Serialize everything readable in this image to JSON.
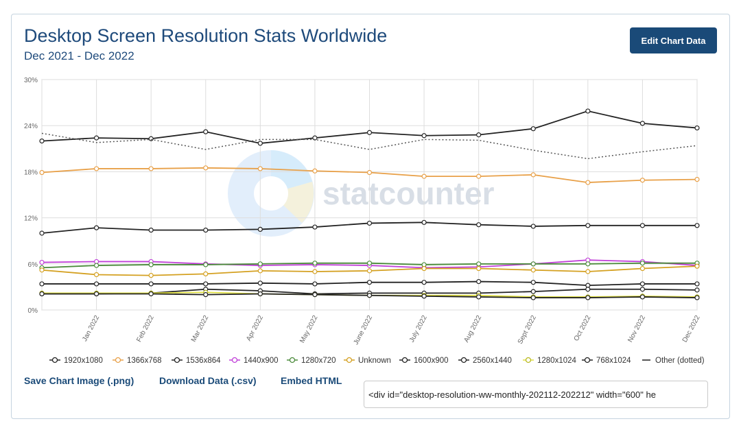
{
  "header": {
    "title": "Desktop Screen Resolution Stats Worldwide",
    "subtitle": "Dec 2021 - Dec 2022",
    "edit_button": "Edit Chart Data"
  },
  "watermark": "statcounter",
  "footer": {
    "save_image": "Save Chart Image (.png)",
    "download_data": "Download Data (.csv)",
    "embed_html": "Embed HTML",
    "embed_code": "<div id=\"desktop-resolution-ww-monthly-202112-202212\" width=\"600\" he"
  },
  "chart_data": {
    "type": "line",
    "x": [
      "",
      "Jan 2022",
      "Feb 2022",
      "Mar 2022",
      "Apr 2022",
      "May 2022",
      "June 2022",
      "July 2022",
      "Aug 2022",
      "Sept 2022",
      "Oct 2022",
      "Nov 2022",
      "Dec 2022"
    ],
    "yticks": [
      "0%",
      "6%",
      "12%",
      "18%",
      "24%",
      "30%"
    ],
    "ylim": [
      0,
      30
    ],
    "grid": true,
    "legend_position": "bottom",
    "series": [
      {
        "name": "1920x1080",
        "color": "#222222",
        "dotted": false,
        "values": [
          22.0,
          22.4,
          22.3,
          23.2,
          21.7,
          22.4,
          23.1,
          22.7,
          22.8,
          23.6,
          25.9,
          24.3,
          23.7
        ]
      },
      {
        "name": "1366x768",
        "color": "#e8a048",
        "dotted": false,
        "values": [
          17.9,
          18.4,
          18.4,
          18.5,
          18.4,
          18.1,
          17.9,
          17.4,
          17.4,
          17.6,
          16.6,
          16.9,
          17.0
        ]
      },
      {
        "name": "1536x864",
        "color": "#222222",
        "dotted": false,
        "values": [
          10.0,
          10.7,
          10.4,
          10.4,
          10.5,
          10.8,
          11.3,
          11.4,
          11.1,
          10.9,
          11.0,
          11.0,
          11.0
        ]
      },
      {
        "name": "1440x900",
        "color": "#c040d8",
        "dotted": false,
        "values": [
          6.2,
          6.3,
          6.3,
          6.0,
          5.8,
          5.9,
          5.8,
          5.5,
          5.6,
          6.0,
          6.5,
          6.3,
          5.8
        ]
      },
      {
        "name": "1280x720",
        "color": "#4a8a3a",
        "dotted": false,
        "values": [
          5.5,
          5.8,
          5.9,
          5.9,
          6.0,
          6.1,
          6.1,
          5.9,
          6.0,
          6.0,
          6.0,
          6.1,
          6.1
        ]
      },
      {
        "name": "Unknown",
        "color": "#d4a020",
        "dotted": false,
        "values": [
          5.2,
          4.6,
          4.5,
          4.7,
          5.1,
          5.0,
          5.1,
          5.4,
          5.4,
          5.2,
          5.0,
          5.4,
          5.7
        ]
      },
      {
        "name": "1600x900",
        "color": "#222222",
        "dotted": false,
        "values": [
          3.4,
          3.4,
          3.4,
          3.4,
          3.5,
          3.4,
          3.6,
          3.6,
          3.7,
          3.6,
          3.2,
          3.4,
          3.4
        ]
      },
      {
        "name": "2560x1440",
        "color": "#222222",
        "dotted": false,
        "values": [
          2.1,
          2.1,
          2.2,
          2.7,
          2.5,
          2.1,
          2.2,
          2.2,
          2.2,
          2.4,
          2.7,
          2.7,
          2.6
        ]
      },
      {
        "name": "1280x1024",
        "color": "#e0e040",
        "dotted": false,
        "values": [
          2.2,
          2.2,
          2.2,
          2.3,
          2.1,
          2.0,
          1.9,
          1.9,
          1.9,
          1.7,
          1.7,
          1.8,
          1.7
        ]
      },
      {
        "name": "768x1024",
        "color": "#222222",
        "dotted": false,
        "values": [
          2.1,
          2.1,
          2.1,
          2.0,
          2.1,
          2.0,
          1.9,
          1.8,
          1.7,
          1.6,
          1.6,
          1.7,
          1.6
        ]
      },
      {
        "name": "Other (dotted)",
        "color": "#555555",
        "dotted": true,
        "values": [
          23.0,
          21.8,
          22.2,
          20.9,
          22.2,
          22.2,
          20.9,
          22.2,
          22.1,
          20.8,
          19.7,
          20.6,
          21.4
        ]
      }
    ]
  }
}
